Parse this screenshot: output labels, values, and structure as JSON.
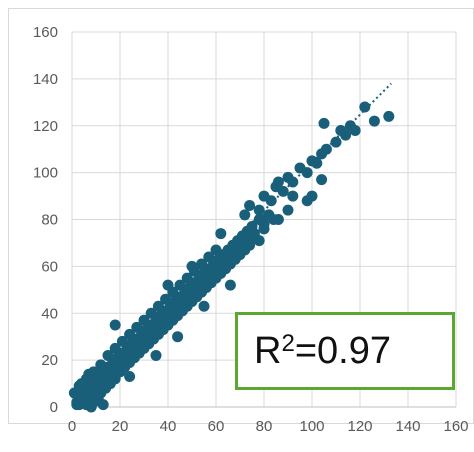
{
  "chart_data": {
    "type": "scatter",
    "xlim": [
      0,
      160
    ],
    "ylim": [
      0,
      160
    ],
    "x_ticks": [
      "0",
      "20",
      "40",
      "60",
      "80",
      "100",
      "120",
      "140",
      "160"
    ],
    "y_ticks": [
      "0",
      "20",
      "40",
      "60",
      "80",
      "100",
      "120",
      "140",
      "160"
    ],
    "grid": true,
    "marker_color": "#1a5f7a",
    "trendline": {
      "style": "dotted",
      "color": "#1a5f7a",
      "x": [
        0,
        133
      ],
      "y": [
        2,
        138
      ]
    },
    "points": [
      [
        2,
        2
      ],
      [
        3,
        5
      ],
      [
        4,
        3
      ],
      [
        5,
        7
      ],
      [
        6,
        4
      ],
      [
        7,
        9
      ],
      [
        8,
        6
      ],
      [
        9,
        11
      ],
      [
        10,
        8
      ],
      [
        11,
        13
      ],
      [
        12,
        10
      ],
      [
        13,
        15
      ],
      [
        14,
        12
      ],
      [
        15,
        17
      ],
      [
        16,
        14
      ],
      [
        17,
        19
      ],
      [
        18,
        16
      ],
      [
        19,
        21
      ],
      [
        20,
        18
      ],
      [
        21,
        23
      ],
      [
        22,
        20
      ],
      [
        23,
        25
      ],
      [
        24,
        22
      ],
      [
        25,
        27
      ],
      [
        26,
        24
      ],
      [
        27,
        29
      ],
      [
        28,
        26
      ],
      [
        29,
        31
      ],
      [
        30,
        28
      ],
      [
        31,
        33
      ],
      [
        32,
        30
      ],
      [
        33,
        35
      ],
      [
        34,
        32
      ],
      [
        35,
        37
      ],
      [
        36,
        34
      ],
      [
        37,
        39
      ],
      [
        38,
        36
      ],
      [
        39,
        41
      ],
      [
        40,
        38
      ],
      [
        41,
        43
      ],
      [
        42,
        40
      ],
      [
        43,
        45
      ],
      [
        44,
        42
      ],
      [
        45,
        47
      ],
      [
        46,
        44
      ],
      [
        47,
        49
      ],
      [
        48,
        46
      ],
      [
        49,
        51
      ],
      [
        50,
        48
      ],
      [
        51,
        53
      ],
      [
        52,
        50
      ],
      [
        53,
        55
      ],
      [
        54,
        52
      ],
      [
        55,
        57
      ],
      [
        56,
        54
      ],
      [
        57,
        59
      ],
      [
        58,
        56
      ],
      [
        59,
        61
      ],
      [
        60,
        58
      ],
      [
        61,
        63
      ],
      [
        62,
        60
      ],
      [
        63,
        65
      ],
      [
        64,
        62
      ],
      [
        65,
        67
      ],
      [
        66,
        64
      ],
      [
        67,
        69
      ],
      [
        68,
        66
      ],
      [
        69,
        71
      ],
      [
        70,
        68
      ],
      [
        71,
        73
      ],
      [
        72,
        70
      ],
      [
        73,
        75
      ],
      [
        74,
        72
      ],
      [
        75,
        77
      ],
      [
        76,
        74
      ],
      [
        78,
        80
      ],
      [
        80,
        78
      ],
      [
        82,
        82
      ],
      [
        84,
        80
      ],
      [
        5,
        2
      ],
      [
        8,
        3
      ],
      [
        10,
        4
      ],
      [
        12,
        6
      ],
      [
        14,
        8
      ],
      [
        16,
        10
      ],
      [
        18,
        12
      ],
      [
        20,
        15
      ],
      [
        22,
        17
      ],
      [
        24,
        19
      ],
      [
        26,
        21
      ],
      [
        28,
        23
      ],
      [
        30,
        25
      ],
      [
        32,
        27
      ],
      [
        34,
        29
      ],
      [
        36,
        31
      ],
      [
        38,
        33
      ],
      [
        40,
        35
      ],
      [
        42,
        37
      ],
      [
        44,
        39
      ],
      [
        46,
        41
      ],
      [
        48,
        43
      ],
      [
        50,
        45
      ],
      [
        52,
        47
      ],
      [
        54,
        49
      ],
      [
        56,
        51
      ],
      [
        58,
        53
      ],
      [
        60,
        55
      ],
      [
        62,
        57
      ],
      [
        64,
        59
      ],
      [
        66,
        61
      ],
      [
        68,
        63
      ],
      [
        70,
        65
      ],
      [
        72,
        67
      ],
      [
        74,
        69
      ],
      [
        3,
        9
      ],
      [
        6,
        12
      ],
      [
        9,
        15
      ],
      [
        12,
        18
      ],
      [
        15,
        22
      ],
      [
        18,
        25
      ],
      [
        21,
        28
      ],
      [
        24,
        31
      ],
      [
        27,
        34
      ],
      [
        30,
        37
      ],
      [
        33,
        40
      ],
      [
        36,
        43
      ],
      [
        39,
        46
      ],
      [
        42,
        49
      ],
      [
        45,
        52
      ],
      [
        48,
        55
      ],
      [
        51,
        58
      ],
      [
        54,
        61
      ],
      [
        57,
        64
      ],
      [
        60,
        67
      ],
      [
        1,
        6
      ],
      [
        2,
        1
      ],
      [
        3,
        1
      ],
      [
        6,
        1
      ],
      [
        8,
        0
      ],
      [
        9,
        2
      ],
      [
        11,
        3
      ],
      [
        4,
        10
      ],
      [
        7,
        14
      ],
      [
        13,
        1
      ],
      [
        18,
        35
      ],
      [
        24,
        13
      ],
      [
        35,
        22
      ],
      [
        44,
        30
      ],
      [
        55,
        43
      ],
      [
        66,
        52
      ],
      [
        79,
        80
      ],
      [
        62,
        74
      ],
      [
        50,
        60
      ],
      [
        40,
        52
      ],
      [
        72,
        82
      ],
      [
        74,
        86
      ],
      [
        78,
        84
      ],
      [
        80,
        90
      ],
      [
        83,
        88
      ],
      [
        85,
        94
      ],
      [
        88,
        92
      ],
      [
        90,
        98
      ],
      [
        92,
        96
      ],
      [
        95,
        102
      ],
      [
        98,
        100
      ],
      [
        100,
        105
      ],
      [
        102,
        104
      ],
      [
        86,
        96
      ],
      [
        92,
        90
      ],
      [
        98,
        88
      ],
      [
        100,
        90
      ],
      [
        104,
        97
      ],
      [
        80,
        76
      ],
      [
        78,
        71
      ],
      [
        86,
        80
      ],
      [
        90,
        84
      ],
      [
        104,
        108
      ],
      [
        106,
        110
      ],
      [
        110,
        113
      ],
      [
        112,
        118
      ],
      [
        114,
        116
      ],
      [
        116,
        120
      ],
      [
        105,
        121
      ],
      [
        118,
        118
      ],
      [
        122,
        128
      ],
      [
        126,
        122
      ],
      [
        132,
        124
      ]
    ]
  },
  "annotation": {
    "r2_label_base": "R",
    "r2_label_exp": "2",
    "r2_value_text": "=0.97"
  }
}
